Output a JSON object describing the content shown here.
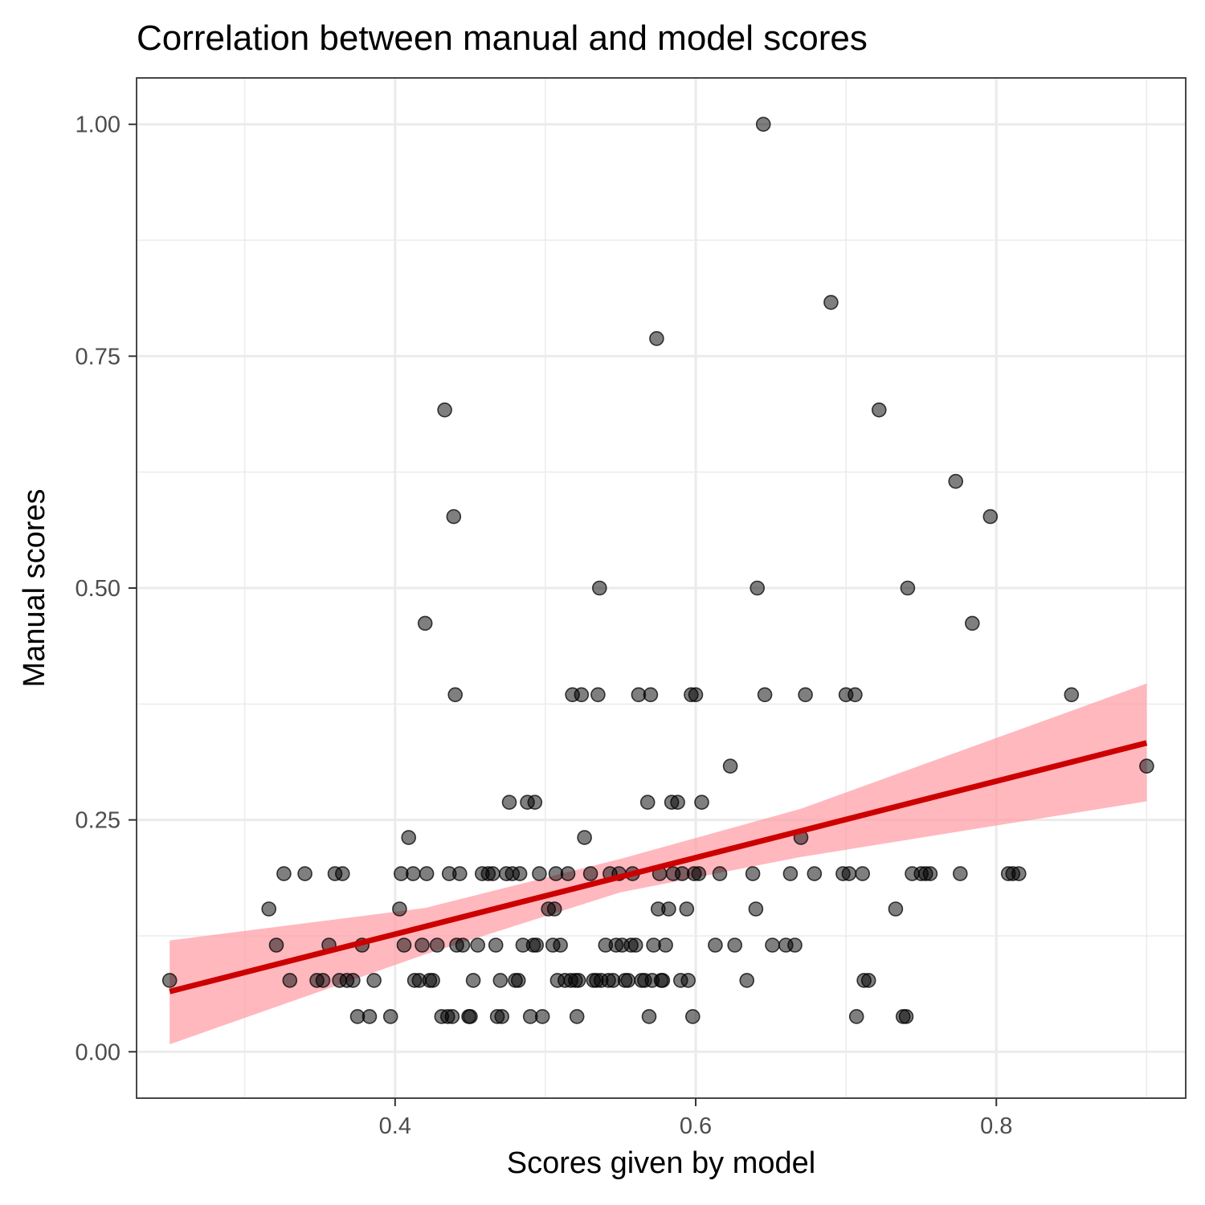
{
  "chart_data": {
    "type": "scatter",
    "title": "Correlation between manual and model scores",
    "xlabel": "Scores given by model",
    "ylabel": "Manual scores",
    "xlim": [
      0.228,
      0.926
    ],
    "ylim": [
      -0.05,
      1.05
    ],
    "x_ticks": [
      0.4,
      0.6,
      0.8
    ],
    "x_tick_labels": [
      "0.4",
      "0.6",
      "0.8"
    ],
    "y_ticks": [
      0.0,
      0.25,
      0.5,
      0.75,
      1.0
    ],
    "y_tick_labels": [
      "0.00",
      "0.25",
      "0.50",
      "0.75",
      "1.00"
    ],
    "grid": true,
    "point_color": "#000000",
    "point_opacity": 0.5,
    "fit_line": {
      "type": "linear",
      "color": "#cc0000",
      "x": [
        0.25,
        0.9
      ],
      "y": [
        0.065,
        0.333
      ]
    },
    "ci_band": {
      "color": "#ff9aa2",
      "opacity": 0.7,
      "x": [
        0.25,
        0.42,
        0.55,
        0.67,
        0.9
      ],
      "lower": [
        0.008,
        0.105,
        0.172,
        0.21,
        0.27
      ],
      "upper": [
        0.12,
        0.155,
        0.208,
        0.262,
        0.397
      ]
    },
    "points": [
      {
        "x": 0.25,
        "y": 0.077
      },
      {
        "x": 0.316,
        "y": 0.154
      },
      {
        "x": 0.321,
        "y": 0.115
      },
      {
        "x": 0.326,
        "y": 0.192
      },
      {
        "x": 0.33,
        "y": 0.077
      },
      {
        "x": 0.34,
        "y": 0.192
      },
      {
        "x": 0.348,
        "y": 0.077
      },
      {
        "x": 0.352,
        "y": 0.077
      },
      {
        "x": 0.356,
        "y": 0.115
      },
      {
        "x": 0.36,
        "y": 0.192
      },
      {
        "x": 0.365,
        "y": 0.192
      },
      {
        "x": 0.363,
        "y": 0.077
      },
      {
        "x": 0.368,
        "y": 0.077
      },
      {
        "x": 0.372,
        "y": 0.077
      },
      {
        "x": 0.375,
        "y": 0.038
      },
      {
        "x": 0.378,
        "y": 0.115
      },
      {
        "x": 0.383,
        "y": 0.038
      },
      {
        "x": 0.386,
        "y": 0.077
      },
      {
        "x": 0.397,
        "y": 0.038
      },
      {
        "x": 0.403,
        "y": 0.154
      },
      {
        "x": 0.404,
        "y": 0.192
      },
      {
        "x": 0.406,
        "y": 0.115
      },
      {
        "x": 0.409,
        "y": 0.231
      },
      {
        "x": 0.412,
        "y": 0.192
      },
      {
        "x": 0.413,
        "y": 0.077
      },
      {
        "x": 0.416,
        "y": 0.077
      },
      {
        "x": 0.418,
        "y": 0.115
      },
      {
        "x": 0.42,
        "y": 0.462
      },
      {
        "x": 0.421,
        "y": 0.192
      },
      {
        "x": 0.423,
        "y": 0.077
      },
      {
        "x": 0.425,
        "y": 0.077
      },
      {
        "x": 0.428,
        "y": 0.115
      },
      {
        "x": 0.431,
        "y": 0.038
      },
      {
        "x": 0.433,
        "y": 0.692
      },
      {
        "x": 0.435,
        "y": 0.038
      },
      {
        "x": 0.436,
        "y": 0.192
      },
      {
        "x": 0.438,
        "y": 0.038
      },
      {
        "x": 0.439,
        "y": 0.577
      },
      {
        "x": 0.44,
        "y": 0.385
      },
      {
        "x": 0.441,
        "y": 0.115
      },
      {
        "x": 0.443,
        "y": 0.192
      },
      {
        "x": 0.445,
        "y": 0.115
      },
      {
        "x": 0.449,
        "y": 0.038
      },
      {
        "x": 0.45,
        "y": 0.038
      },
      {
        "x": 0.452,
        "y": 0.077
      },
      {
        "x": 0.455,
        "y": 0.115
      },
      {
        "x": 0.458,
        "y": 0.192
      },
      {
        "x": 0.462,
        "y": 0.192
      },
      {
        "x": 0.465,
        "y": 0.192
      },
      {
        "x": 0.467,
        "y": 0.115
      },
      {
        "x": 0.468,
        "y": 0.038
      },
      {
        "x": 0.47,
        "y": 0.077
      },
      {
        "x": 0.471,
        "y": 0.038
      },
      {
        "x": 0.474,
        "y": 0.192
      },
      {
        "x": 0.476,
        "y": 0.269
      },
      {
        "x": 0.478,
        "y": 0.192
      },
      {
        "x": 0.48,
        "y": 0.077
      },
      {
        "x": 0.482,
        "y": 0.077
      },
      {
        "x": 0.483,
        "y": 0.192
      },
      {
        "x": 0.485,
        "y": 0.115
      },
      {
        "x": 0.488,
        "y": 0.269
      },
      {
        "x": 0.49,
        "y": 0.038
      },
      {
        "x": 0.492,
        "y": 0.115
      },
      {
        "x": 0.493,
        "y": 0.269
      },
      {
        "x": 0.494,
        "y": 0.115
      },
      {
        "x": 0.496,
        "y": 0.192
      },
      {
        "x": 0.498,
        "y": 0.038
      },
      {
        "x": 0.502,
        "y": 0.154
      },
      {
        "x": 0.505,
        "y": 0.115
      },
      {
        "x": 0.506,
        "y": 0.154
      },
      {
        "x": 0.507,
        "y": 0.192
      },
      {
        "x": 0.508,
        "y": 0.077
      },
      {
        "x": 0.51,
        "y": 0.115
      },
      {
        "x": 0.513,
        "y": 0.077
      },
      {
        "x": 0.515,
        "y": 0.192
      },
      {
        "x": 0.517,
        "y": 0.077
      },
      {
        "x": 0.518,
        "y": 0.385
      },
      {
        "x": 0.52,
        "y": 0.077
      },
      {
        "x": 0.521,
        "y": 0.038
      },
      {
        "x": 0.522,
        "y": 0.077
      },
      {
        "x": 0.524,
        "y": 0.385
      },
      {
        "x": 0.526,
        "y": 0.231
      },
      {
        "x": 0.53,
        "y": 0.192
      },
      {
        "x": 0.532,
        "y": 0.077
      },
      {
        "x": 0.534,
        "y": 0.077
      },
      {
        "x": 0.535,
        "y": 0.385
      },
      {
        "x": 0.536,
        "y": 0.5
      },
      {
        "x": 0.537,
        "y": 0.077
      },
      {
        "x": 0.54,
        "y": 0.115
      },
      {
        "x": 0.542,
        "y": 0.077
      },
      {
        "x": 0.543,
        "y": 0.192
      },
      {
        "x": 0.545,
        "y": 0.077
      },
      {
        "x": 0.547,
        "y": 0.115
      },
      {
        "x": 0.549,
        "y": 0.192
      },
      {
        "x": 0.551,
        "y": 0.115
      },
      {
        "x": 0.553,
        "y": 0.077
      },
      {
        "x": 0.555,
        "y": 0.077
      },
      {
        "x": 0.557,
        "y": 0.115
      },
      {
        "x": 0.558,
        "y": 0.192
      },
      {
        "x": 0.56,
        "y": 0.115
      },
      {
        "x": 0.562,
        "y": 0.385
      },
      {
        "x": 0.564,
        "y": 0.077
      },
      {
        "x": 0.566,
        "y": 0.077
      },
      {
        "x": 0.568,
        "y": 0.269
      },
      {
        "x": 0.569,
        "y": 0.038
      },
      {
        "x": 0.57,
        "y": 0.385
      },
      {
        "x": 0.571,
        "y": 0.077
      },
      {
        "x": 0.572,
        "y": 0.115
      },
      {
        "x": 0.574,
        "y": 0.769
      },
      {
        "x": 0.575,
        "y": 0.154
      },
      {
        "x": 0.576,
        "y": 0.192
      },
      {
        "x": 0.577,
        "y": 0.077
      },
      {
        "x": 0.578,
        "y": 0.077
      },
      {
        "x": 0.58,
        "y": 0.115
      },
      {
        "x": 0.582,
        "y": 0.154
      },
      {
        "x": 0.584,
        "y": 0.269
      },
      {
        "x": 0.585,
        "y": 0.192
      },
      {
        "x": 0.588,
        "y": 0.269
      },
      {
        "x": 0.59,
        "y": 0.077
      },
      {
        "x": 0.591,
        "y": 0.192
      },
      {
        "x": 0.594,
        "y": 0.154
      },
      {
        "x": 0.595,
        "y": 0.077
      },
      {
        "x": 0.597,
        "y": 0.385
      },
      {
        "x": 0.598,
        "y": 0.038
      },
      {
        "x": 0.599,
        "y": 0.192
      },
      {
        "x": 0.6,
        "y": 0.385
      },
      {
        "x": 0.602,
        "y": 0.192
      },
      {
        "x": 0.604,
        "y": 0.269
      },
      {
        "x": 0.613,
        "y": 0.115
      },
      {
        "x": 0.616,
        "y": 0.192
      },
      {
        "x": 0.623,
        "y": 0.308
      },
      {
        "x": 0.626,
        "y": 0.115
      },
      {
        "x": 0.634,
        "y": 0.077
      },
      {
        "x": 0.638,
        "y": 0.192
      },
      {
        "x": 0.64,
        "y": 0.154
      },
      {
        "x": 0.641,
        "y": 0.5
      },
      {
        "x": 0.645,
        "y": 1.0
      },
      {
        "x": 0.646,
        "y": 0.385
      },
      {
        "x": 0.651,
        "y": 0.115
      },
      {
        "x": 0.66,
        "y": 0.115
      },
      {
        "x": 0.663,
        "y": 0.192
      },
      {
        "x": 0.666,
        "y": 0.115
      },
      {
        "x": 0.67,
        "y": 0.231
      },
      {
        "x": 0.673,
        "y": 0.385
      },
      {
        "x": 0.679,
        "y": 0.192
      },
      {
        "x": 0.69,
        "y": 0.808
      },
      {
        "x": 0.698,
        "y": 0.192
      },
      {
        "x": 0.7,
        "y": 0.385
      },
      {
        "x": 0.702,
        "y": 0.192
      },
      {
        "x": 0.706,
        "y": 0.385
      },
      {
        "x": 0.707,
        "y": 0.038
      },
      {
        "x": 0.711,
        "y": 0.192
      },
      {
        "x": 0.712,
        "y": 0.077
      },
      {
        "x": 0.715,
        "y": 0.077
      },
      {
        "x": 0.722,
        "y": 0.692
      },
      {
        "x": 0.733,
        "y": 0.154
      },
      {
        "x": 0.738,
        "y": 0.038
      },
      {
        "x": 0.74,
        "y": 0.038
      },
      {
        "x": 0.741,
        "y": 0.5
      },
      {
        "x": 0.744,
        "y": 0.192
      },
      {
        "x": 0.75,
        "y": 0.192
      },
      {
        "x": 0.753,
        "y": 0.192
      },
      {
        "x": 0.756,
        "y": 0.192
      },
      {
        "x": 0.773,
        "y": 0.615
      },
      {
        "x": 0.776,
        "y": 0.192
      },
      {
        "x": 0.784,
        "y": 0.462
      },
      {
        "x": 0.796,
        "y": 0.577
      },
      {
        "x": 0.808,
        "y": 0.192
      },
      {
        "x": 0.811,
        "y": 0.192
      },
      {
        "x": 0.815,
        "y": 0.192
      },
      {
        "x": 0.85,
        "y": 0.385
      },
      {
        "x": 0.9,
        "y": 0.308
      }
    ]
  }
}
